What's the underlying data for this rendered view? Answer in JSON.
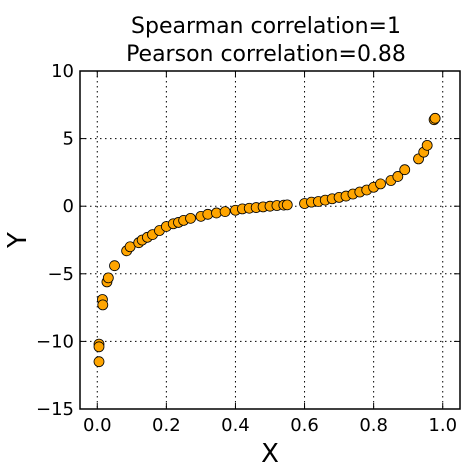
{
  "chart_data": {
    "type": "scatter",
    "title_lines": [
      "Spearman correlation=1",
      "Pearson correlation=0.88"
    ],
    "xlabel": "X",
    "ylabel": "Y",
    "xlim": [
      -0.05,
      1.05
    ],
    "ylim": [
      -15,
      10
    ],
    "xticks": [
      0.0,
      0.2,
      0.4,
      0.6,
      0.8,
      1.0
    ],
    "xtick_labels": [
      "0.0",
      "0.2",
      "0.4",
      "0.6",
      "0.8",
      "1.0"
    ],
    "yticks": [
      -15,
      -10,
      -5,
      0,
      5,
      10
    ],
    "ytick_labels": [
      "−15",
      "−10",
      "−5",
      "0",
      "5",
      "10"
    ],
    "grid": true,
    "marker_color": "#FFA500",
    "marker_edge_color": "#000000",
    "series": [
      {
        "x": [
          0.005,
          0.005,
          0.005,
          0.015,
          0.016,
          0.028,
          0.032,
          0.05,
          0.085,
          0.095,
          0.12,
          0.13,
          0.145,
          0.16,
          0.18,
          0.2,
          0.22,
          0.235,
          0.25,
          0.27,
          0.3,
          0.32,
          0.345,
          0.37,
          0.4,
          0.42,
          0.44,
          0.46,
          0.48,
          0.5,
          0.52,
          0.54,
          0.55,
          0.6,
          0.62,
          0.64,
          0.66,
          0.68,
          0.7,
          0.72,
          0.74,
          0.76,
          0.78,
          0.8,
          0.82,
          0.85,
          0.87,
          0.89,
          0.93,
          0.945,
          0.955,
          0.975,
          0.978
        ],
        "y": [
          -10.2,
          -10.4,
          -11.5,
          -6.9,
          -7.3,
          -5.6,
          -5.3,
          -4.4,
          -3.3,
          -3.0,
          -2.7,
          -2.5,
          -2.3,
          -2.1,
          -1.8,
          -1.5,
          -1.3,
          -1.2,
          -1.05,
          -0.9,
          -0.75,
          -0.6,
          -0.5,
          -0.4,
          -0.3,
          -0.2,
          -0.15,
          -0.1,
          -0.05,
          0.0,
          0.05,
          0.08,
          0.1,
          0.2,
          0.3,
          0.35,
          0.45,
          0.55,
          0.65,
          0.75,
          0.9,
          1.05,
          1.2,
          1.4,
          1.65,
          1.9,
          2.2,
          2.7,
          3.5,
          4.0,
          4.5,
          6.4,
          6.5
        ]
      }
    ]
  }
}
